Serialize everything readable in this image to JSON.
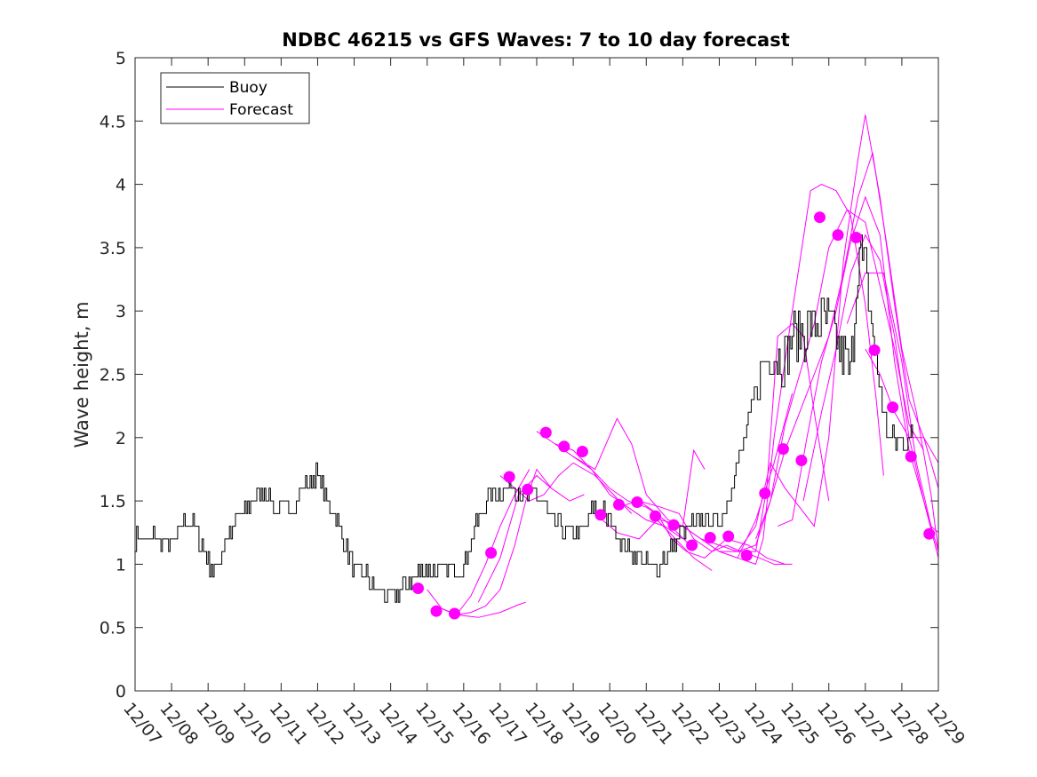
{
  "chart_data": {
    "type": "line",
    "title": "NDBC 46215 vs GFS Waves: 7 to 10 day forecast",
    "xlabel": "",
    "ylabel": "Wave height, m",
    "ylim": [
      0,
      5
    ],
    "yticks": [
      0,
      0.5,
      1,
      1.5,
      2,
      2.5,
      3,
      3.5,
      4,
      4.5,
      5
    ],
    "ytick_labels": [
      "0",
      "0.5",
      "1",
      "1.5",
      "2",
      "2.5",
      "3",
      "3.5",
      "4",
      "4.5",
      "5"
    ],
    "xlim": [
      0,
      22
    ],
    "xtick_labels": [
      "12/07",
      "12/08",
      "12/09",
      "12/10",
      "12/11",
      "12/12",
      "12/13",
      "12/14",
      "12/15",
      "12/16",
      "12/17",
      "12/18",
      "12/19",
      "12/20",
      "12/21",
      "12/22",
      "12/23",
      "12/24",
      "12/25",
      "12/26",
      "12/27",
      "12/28",
      "12/29"
    ],
    "legend": {
      "position": "top-left",
      "entries": [
        {
          "name": "Buoy",
          "color": "#000000"
        },
        {
          "name": "Forecast",
          "color": "#ff00ff"
        }
      ]
    },
    "colors": {
      "buoy": "#000000",
      "forecast": "#ff00ff"
    },
    "buoy": {
      "name": "Buoy",
      "x": [
        0,
        0.5,
        1,
        1.3,
        1.6,
        2,
        2.2,
        2.5,
        2.8,
        3,
        3.5,
        3.8,
        4,
        4.3,
        4.6,
        5,
        5.3,
        5.6,
        5.8,
        6,
        6.3,
        6.6,
        7,
        7.3,
        7.6,
        8,
        8.3,
        8.6,
        9,
        9.3,
        9.6,
        10,
        10.3,
        10.6,
        11,
        11.3,
        11.6,
        12,
        12.3,
        12.6,
        13,
        13.3,
        13.6,
        14,
        14.3,
        14.6,
        15,
        15.3,
        15.6,
        16,
        16.3,
        16.6,
        17,
        17.2,
        17.5,
        17.8,
        18,
        18.3,
        18.6,
        19,
        19.3,
        19.6,
        19.8,
        20,
        20.3,
        20.6,
        21,
        21.3
      ],
      "y": [
        1.2,
        1.2,
        1.15,
        1.3,
        1.35,
        1.0,
        0.95,
        1.2,
        1.35,
        1.4,
        1.6,
        1.45,
        1.4,
        1.45,
        1.6,
        1.7,
        1.5,
        1.3,
        1.1,
        0.95,
        0.9,
        0.8,
        0.75,
        0.8,
        0.9,
        0.95,
        0.95,
        0.95,
        1.0,
        1.3,
        1.5,
        1.6,
        1.65,
        1.55,
        1.55,
        1.4,
        1.3,
        1.2,
        1.3,
        1.45,
        1.35,
        1.15,
        1.1,
        1.0,
        1.0,
        1.1,
        1.25,
        1.3,
        1.35,
        1.3,
        1.6,
        1.9,
        2.4,
        2.6,
        2.7,
        2.6,
        2.8,
        2.8,
        2.9,
        2.9,
        2.7,
        2.5,
        3.5,
        3.3,
        2.6,
        2.0,
        1.95,
        2.0
      ]
    },
    "forecast_lines": [
      {
        "x": [
          8.0,
          8.4,
          8.8,
          9.2,
          9.6,
          10.0,
          10.4,
          10.8
        ],
        "y": [
          0.8,
          0.65,
          0.6,
          0.75,
          1.0,
          1.3,
          1.55,
          1.75
        ]
      },
      {
        "x": [
          8.4,
          8.8,
          9.2,
          9.6,
          10.0,
          10.4,
          10.7,
          11.0,
          11.4
        ],
        "y": [
          0.65,
          0.6,
          0.62,
          0.67,
          0.8,
          1.15,
          1.5,
          1.75,
          1.6
        ]
      },
      {
        "x": [
          8.8,
          9.4,
          10.0,
          10.5,
          10.7
        ],
        "y": [
          0.6,
          0.58,
          0.62,
          0.68,
          0.7
        ]
      },
      {
        "x": [
          9.4,
          10.0,
          10.5,
          11.0,
          11.4,
          11.9,
          12.3
        ],
        "y": [
          0.7,
          1.05,
          1.55,
          1.7,
          1.6,
          1.5,
          1.55
        ]
      },
      {
        "x": [
          10.0,
          10.4,
          10.8,
          11.2,
          11.6,
          12.0,
          12.6,
          13.1,
          13.6
        ],
        "y": [
          1.7,
          1.6,
          1.5,
          1.55,
          1.7,
          1.8,
          1.7,
          1.55,
          1.4
        ]
      },
      {
        "x": [
          11.0,
          11.5,
          12.0,
          12.5,
          13.0,
          13.5,
          14.0,
          14.5,
          15.0
        ],
        "y": [
          2.05,
          1.95,
          1.85,
          1.75,
          1.55,
          1.45,
          1.35,
          1.3,
          1.2
        ]
      },
      {
        "x": [
          11.5,
          12.0,
          12.5,
          13.0,
          13.5,
          14.0,
          14.5,
          15.2
        ],
        "y": [
          1.95,
          1.9,
          1.75,
          1.6,
          1.5,
          1.45,
          1.35,
          1.15
        ]
      },
      {
        "x": [
          12.0,
          12.6,
          13.2,
          13.6,
          14.0,
          14.6,
          15.0,
          15.3,
          15.6
        ],
        "y": [
          1.85,
          1.75,
          2.15,
          1.95,
          1.55,
          1.35,
          1.3,
          1.9,
          1.75
        ]
      },
      {
        "x": [
          12.6,
          13.2,
          13.8,
          14.3,
          14.8,
          15.3,
          15.8
        ],
        "y": [
          1.4,
          1.25,
          1.2,
          1.35,
          1.2,
          1.05,
          0.95
        ]
      },
      {
        "x": [
          13.2,
          13.8,
          14.3,
          14.7,
          15.1,
          15.6,
          16.2,
          16.8,
          17.3,
          17.8
        ],
        "y": [
          1.45,
          1.5,
          1.4,
          1.2,
          1.1,
          1.05,
          1.2,
          1.15,
          1.05,
          1.0
        ]
      },
      {
        "x": [
          13.8,
          14.4,
          14.9,
          15.3,
          15.8,
          16.2,
          16.6,
          17.1,
          17.5,
          18.0
        ],
        "y": [
          1.5,
          1.45,
          1.4,
          1.2,
          1.1,
          1.15,
          1.1,
          1.05,
          1.0,
          1.0
        ]
      },
      {
        "x": [
          14.4,
          15.0,
          15.5,
          16.0,
          16.5,
          17.0,
          17.5,
          18.0
        ],
        "y": [
          1.35,
          1.3,
          1.2,
          1.1,
          1.05,
          1.35,
          1.8,
          2.35
        ]
      },
      {
        "x": [
          15.0,
          15.5,
          16.0,
          16.5,
          17.0,
          17.2,
          17.5,
          18.0,
          18.5,
          18.8,
          19.2,
          19.6,
          20.0,
          20.3,
          20.5
        ],
        "y": [
          1.3,
          1.2,
          1.1,
          1.05,
          1.0,
          1.2,
          2.0,
          3.0,
          3.95,
          4.0,
          3.95,
          3.75,
          3.05,
          2.3,
          1.7
        ]
      },
      {
        "x": [
          15.5,
          16.0,
          16.5,
          17.0,
          17.3,
          17.6,
          18.0,
          18.3,
          18.6,
          19.0
        ],
        "y": [
          1.2,
          1.15,
          1.1,
          1.1,
          1.6,
          2.8,
          2.9,
          2.8,
          2.2,
          1.5
        ]
      },
      {
        "x": [
          16.0,
          16.5,
          17.0,
          17.4,
          17.8,
          18.2,
          18.6,
          19.0,
          19.5,
          20.0,
          20.4,
          20.8,
          21.2,
          21.6
        ],
        "y": [
          1.1,
          1.1,
          1.15,
          1.5,
          2.1,
          2.5,
          2.9,
          3.5,
          3.8,
          3.7,
          3.2,
          2.7,
          2.1,
          1.9
        ]
      },
      {
        "x": [
          16.5,
          17.0,
          17.4,
          17.8,
          18.2,
          18.6,
          19.0,
          19.4,
          19.8,
          20.0,
          20.4,
          20.8,
          21.2,
          21.6,
          22.0
        ],
        "y": [
          1.1,
          1.3,
          1.8,
          1.6,
          1.45,
          1.3,
          2.0,
          3.4,
          4.2,
          4.55,
          3.9,
          3.05,
          2.3,
          2.0,
          1.6
        ]
      },
      {
        "x": [
          17.0,
          17.4,
          17.8,
          18.2,
          18.6,
          19.0,
          19.4,
          19.8,
          20.2,
          20.6,
          21.0,
          21.4,
          21.8,
          22.0
        ],
        "y": [
          1.2,
          1.5,
          1.9,
          2.2,
          2.5,
          2.8,
          3.3,
          3.9,
          4.25,
          3.5,
          2.7,
          2.2,
          1.55,
          1.1
        ]
      },
      {
        "x": [
          17.6,
          18.0,
          18.4,
          18.8,
          19.2,
          19.6,
          20.0,
          20.4,
          20.8,
          21.2,
          21.6,
          22.0
        ],
        "y": [
          1.3,
          1.35,
          2.0,
          2.6,
          3.0,
          3.55,
          3.9,
          3.6,
          2.6,
          1.9,
          1.5,
          1.1
        ]
      },
      {
        "x": [
          18.3,
          18.8,
          19.2,
          19.6,
          20.0,
          20.4,
          20.8,
          21.2,
          21.6,
          22.0
        ],
        "y": [
          1.5,
          2.2,
          2.7,
          3.3,
          3.6,
          3.4,
          2.8,
          2.0,
          1.5,
          1.05
        ]
      },
      {
        "x": [
          19.5,
          20.0,
          20.5,
          21.0,
          21.4,
          21.8,
          22.0
        ],
        "y": [
          2.9,
          3.3,
          3.3,
          2.6,
          1.8,
          1.3,
          1.25
        ]
      },
      {
        "x": [
          20.0,
          20.4,
          20.8,
          21.2,
          21.6,
          22.0
        ],
        "y": [
          2.7,
          2.5,
          2.2,
          2.0,
          2.0,
          1.8
        ]
      }
    ],
    "forecast_points": {
      "x": [
        7.75,
        8.25,
        8.75,
        9.75,
        10.25,
        10.75,
        11.25,
        11.75,
        12.25,
        12.75,
        13.25,
        13.75,
        14.25,
        14.75,
        15.25,
        15.75,
        16.25,
        16.75,
        17.25,
        17.75,
        18.25,
        18.75,
        19.25,
        19.75,
        20.25,
        20.75,
        21.25,
        21.75
      ],
      "y": [
        0.81,
        0.63,
        0.61,
        1.09,
        1.69,
        1.59,
        2.04,
        1.93,
        1.89,
        1.39,
        1.47,
        1.49,
        1.38,
        1.31,
        1.15,
        1.21,
        1.22,
        1.07,
        1.56,
        1.91,
        1.82,
        3.74,
        3.6,
        3.58,
        2.69,
        2.24,
        1.85,
        1.24
      ]
    }
  }
}
